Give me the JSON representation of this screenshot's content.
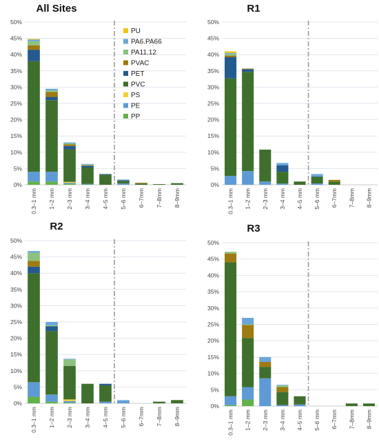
{
  "colors": {
    "PU": "#f2c418",
    "PA6.PA66": "#6aa6dc",
    "PA11.12": "#8cc27e",
    "PVAC": "#9e7a12",
    "PET": "#245a8d",
    "PVC": "#3f6f2c",
    "PS": "#f5d230",
    "PE": "#5e9bd6",
    "PP": "#63b14a",
    "grid": "#dfe6ee",
    "axis": "#c8c8c8",
    "divider": "#9a9a9a",
    "text": "#444444"
  },
  "legend": [
    "PU",
    "PA6.PA66",
    "PA11.12",
    "PVAC",
    "PET",
    "PVC",
    "PS",
    "PE",
    "PP"
  ],
  "chart_data": [
    {
      "type": "bar",
      "stacked": true,
      "title": "All Sites",
      "categories": [
        "0.3–1 mm",
        "1–2 mm",
        "2–3 mm",
        "3–4 mm",
        "4–5 mm",
        "5–6 mm",
        "6–7mm",
        "7–8mm",
        "8–9mm"
      ],
      "yticks": [
        "0%",
        "5%",
        "10%",
        "15%",
        "20%",
        "25%",
        "30%",
        "35%",
        "40%",
        "45%",
        "50%"
      ],
      "ylim": [
        0,
        50
      ],
      "divider_after_category": 4,
      "legend_position": "right",
      "series": [
        {
          "name": "PP",
          "values": [
            1.0,
            1.0,
            0.3,
            0.1,
            0.0,
            0.0,
            0.0,
            0.0,
            0.0
          ]
        },
        {
          "name": "PE",
          "values": [
            3.0,
            3.0,
            0.3,
            0.2,
            0.0,
            0.4,
            0.0,
            0.0,
            0.0
          ]
        },
        {
          "name": "PS",
          "values": [
            0.0,
            0.0,
            0.3,
            0.0,
            0.0,
            0.0,
            0.0,
            0.0,
            0.0
          ]
        },
        {
          "name": "PVC",
          "values": [
            34.0,
            22.0,
            10.0,
            5.0,
            3.1,
            0.8,
            0.4,
            0.2,
            0.5
          ]
        },
        {
          "name": "PET",
          "values": [
            3.5,
            1.0,
            1.0,
            0.5,
            0.2,
            0.2,
            0.0,
            0.0,
            0.0
          ]
        },
        {
          "name": "PVAC",
          "values": [
            1.3,
            1.5,
            0.5,
            0.2,
            0.0,
            0.0,
            0.2,
            0.0,
            0.0
          ]
        },
        {
          "name": "PA11.12",
          "values": [
            1.3,
            0.5,
            0.3,
            0.2,
            0.0,
            0.0,
            0.0,
            0.0,
            0.0
          ]
        },
        {
          "name": "PA6.PA66",
          "values": [
            0.5,
            0.5,
            0.3,
            0.2,
            0.0,
            0.2,
            0.0,
            0.0,
            0.0
          ]
        },
        {
          "name": "PU",
          "values": [
            0.2,
            0.0,
            0.0,
            0.0,
            0.0,
            0.0,
            0.0,
            0.0,
            0.0
          ]
        }
      ]
    },
    {
      "type": "bar",
      "stacked": true,
      "title": "R1",
      "categories": [
        "0.3–1 mm",
        "1–2 mm",
        "2–3 mm",
        "3–4 mm",
        "4–5 mm",
        "5–6 mm",
        "6–7mm",
        "7–8mm",
        "8–9mm"
      ],
      "yticks": [
        "0%",
        "5%",
        "10%",
        "15%",
        "20%",
        "25%",
        "30%",
        "35%",
        "40%",
        "45%",
        "50%"
      ],
      "ylim": [
        0,
        50
      ],
      "divider_after_category": 4,
      "series": [
        {
          "name": "PP",
          "values": [
            0.0,
            0.0,
            0.0,
            0.0,
            0.0,
            0.0,
            0.0,
            0.0,
            0.0
          ]
        },
        {
          "name": "PE",
          "values": [
            2.7,
            4.2,
            1.0,
            0.4,
            0.0,
            0.4,
            0.0,
            0.0,
            0.0
          ]
        },
        {
          "name": "PS",
          "values": [
            0.0,
            0.0,
            0.0,
            0.0,
            0.0,
            0.0,
            0.0,
            0.0,
            0.0
          ]
        },
        {
          "name": "PVC",
          "values": [
            30.0,
            30.5,
            9.8,
            3.6,
            1.0,
            2.0,
            1.0,
            0.0,
            0.0
          ]
        },
        {
          "name": "PET",
          "values": [
            6.5,
            0.8,
            0.0,
            2.0,
            0.0,
            0.2,
            0.0,
            0.0,
            0.0
          ]
        },
        {
          "name": "PVAC",
          "values": [
            0.5,
            0.2,
            0.0,
            0.0,
            0.0,
            0.0,
            0.5,
            0.0,
            0.0
          ]
        },
        {
          "name": "PA11.12",
          "values": [
            0.5,
            0.0,
            0.0,
            0.0,
            0.0,
            0.0,
            0.0,
            0.0,
            0.0
          ]
        },
        {
          "name": "PA6.PA66",
          "values": [
            0.3,
            0.0,
            0.0,
            0.7,
            0.0,
            0.7,
            0.0,
            0.0,
            0.0
          ]
        },
        {
          "name": "PU",
          "values": [
            0.5,
            0.0,
            0.0,
            0.0,
            0.0,
            0.0,
            0.0,
            0.0,
            0.0
          ]
        }
      ]
    },
    {
      "type": "bar",
      "stacked": true,
      "title": "R2",
      "categories": [
        "0.3–1 mm",
        "1–2 mm",
        "2–3 mm",
        "3–4 mm",
        "4–5 mm",
        "5–6 mm",
        "6–7mm",
        "7–8mm",
        "8–9mm"
      ],
      "yticks": [
        "0%",
        "5%",
        "10%",
        "15%",
        "20%",
        "25%",
        "30%",
        "35%",
        "40%",
        "45%",
        "50%"
      ],
      "ylim": [
        0,
        50
      ],
      "divider_after_category": 4,
      "series": [
        {
          "name": "PP",
          "values": [
            2.0,
            0.5,
            0.2,
            0.0,
            0.0,
            0.0,
            0.0,
            0.0,
            0.0
          ]
        },
        {
          "name": "PE",
          "values": [
            4.5,
            2.2,
            0.5,
            0.0,
            0.5,
            0.7,
            0.0,
            0.0,
            0.0
          ]
        },
        {
          "name": "PS",
          "values": [
            0.0,
            0.0,
            0.5,
            0.0,
            0.0,
            0.0,
            0.0,
            0.0,
            0.0
          ]
        },
        {
          "name": "PVC",
          "values": [
            33.5,
            19.5,
            10.3,
            6.0,
            5.0,
            0.0,
            0.0,
            0.5,
            1.0
          ]
        },
        {
          "name": "PET",
          "values": [
            2.0,
            1.5,
            0.0,
            0.0,
            0.5,
            0.0,
            0.0,
            0.0,
            0.0
          ]
        },
        {
          "name": "PVAC",
          "values": [
            1.8,
            0.0,
            0.0,
            0.0,
            0.0,
            0.0,
            0.0,
            0.0,
            0.0
          ]
        },
        {
          "name": "PA11.12",
          "values": [
            2.5,
            0.3,
            2.0,
            0.0,
            0.0,
            0.0,
            0.0,
            0.0,
            0.0
          ]
        },
        {
          "name": "PA6.PA66",
          "values": [
            0.5,
            1.0,
            0.2,
            0.0,
            0.0,
            0.3,
            0.0,
            0.0,
            0.0
          ]
        },
        {
          "name": "PU",
          "values": [
            0.0,
            0.0,
            0.0,
            0.0,
            0.0,
            0.0,
            0.0,
            0.0,
            0.0
          ]
        }
      ]
    },
    {
      "type": "bar",
      "stacked": true,
      "title": "R3",
      "categories": [
        "0.3–1 mm",
        "1–2 mm",
        "2–3 mm",
        "3–4 mm",
        "4–5 mm",
        "5–6 mm",
        "6–7mm",
        "7–8mm",
        "8–9mm"
      ],
      "yticks": [
        "0%",
        "5%",
        "10%",
        "15%",
        "20%",
        "25%",
        "30%",
        "35%",
        "40%",
        "45%",
        "50%"
      ],
      "ylim": [
        0,
        50
      ],
      "divider_after_category": 4,
      "series": [
        {
          "name": "PP",
          "values": [
            0.3,
            2.0,
            0.0,
            0.0,
            0.0,
            0.0,
            0.0,
            0.0,
            0.0
          ]
        },
        {
          "name": "PE",
          "values": [
            2.7,
            3.8,
            8.5,
            0.3,
            0.5,
            0.0,
            0.0,
            0.0,
            0.0
          ]
        },
        {
          "name": "PS",
          "values": [
            0.0,
            0.0,
            0.0,
            0.0,
            0.0,
            0.0,
            0.0,
            0.0,
            0.0
          ]
        },
        {
          "name": "PVC",
          "values": [
            41.0,
            15.0,
            3.5,
            4.0,
            2.5,
            0.0,
            0.0,
            0.8,
            0.8
          ]
        },
        {
          "name": "PET",
          "values": [
            0.0,
            0.0,
            0.0,
            0.0,
            0.0,
            0.0,
            0.0,
            0.0,
            0.0
          ]
        },
        {
          "name": "PVAC",
          "values": [
            2.7,
            4.0,
            1.5,
            1.5,
            0.0,
            0.0,
            0.0,
            0.0,
            0.0
          ]
        },
        {
          "name": "PA11.12",
          "values": [
            0.5,
            0.2,
            0.0,
            0.5,
            0.0,
            0.0,
            0.0,
            0.0,
            0.0
          ]
        },
        {
          "name": "PA6.PA66",
          "values": [
            0.0,
            2.0,
            1.5,
            0.2,
            0.0,
            0.0,
            0.0,
            0.0,
            0.0
          ]
        },
        {
          "name": "PU",
          "values": [
            0.0,
            0.0,
            0.0,
            0.0,
            0.0,
            0.0,
            0.0,
            0.0,
            0.0
          ]
        }
      ]
    }
  ]
}
